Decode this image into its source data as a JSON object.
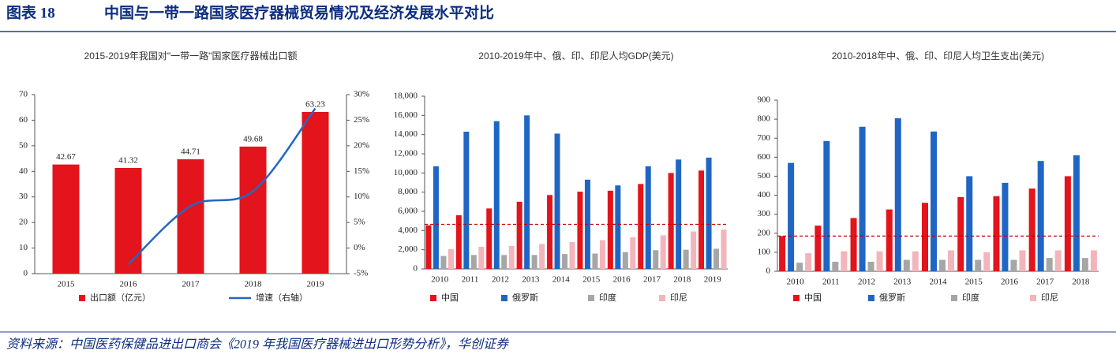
{
  "header": {
    "figure_label": "图表 18",
    "title": "中国与一带一路国家医疗器械贸易情况及经济发展水平对比"
  },
  "chart_data": [
    {
      "type": "combo",
      "title": "2015-2019年我国对\"一带一路\"国家医疗器械出口额",
      "categories": [
        "2015",
        "2016",
        "2017",
        "2018",
        "2019"
      ],
      "series": [
        {
          "name": "出口额（亿元）",
          "type": "bar",
          "color": "#e3141b",
          "values": [
            42.67,
            41.32,
            44.71,
            49.68,
            63.23
          ]
        },
        {
          "name": "增速（右轴）",
          "type": "line",
          "axis": "y2",
          "color": "#2467c2",
          "values": [
            null,
            -3.2,
            8.2,
            11.1,
            27.3
          ]
        }
      ],
      "data_labels": true,
      "ylim": [
        0,
        70
      ],
      "yticks": [
        0,
        10,
        20,
        30,
        40,
        50,
        60,
        70
      ],
      "y2lim": [
        -5,
        30
      ],
      "y2ticks": [
        {
          "value": -5,
          "label": "-5%"
        },
        {
          "value": 0,
          "label": "0%"
        },
        {
          "value": 5,
          "label": "5%"
        },
        {
          "value": 10,
          "label": "10%"
        },
        {
          "value": 15,
          "label": "15%"
        },
        {
          "value": 20,
          "label": "20%"
        },
        {
          "value": 25,
          "label": "25%"
        },
        {
          "value": 30,
          "label": "30%"
        }
      ]
    },
    {
      "type": "bar",
      "title": "2010-2019年中、俄、印、印尼人均GDP(美元)",
      "categories": [
        "2010",
        "2011",
        "2012",
        "2013",
        "2014",
        "2015",
        "2016",
        "2017",
        "2018",
        "2019"
      ],
      "series": [
        {
          "name": "中国",
          "color": "#e3141b",
          "values": [
            4550,
            5600,
            6300,
            7000,
            7700,
            8050,
            8150,
            8850,
            10000,
            10250
          ]
        },
        {
          "name": "俄罗斯",
          "color": "#1f66c4",
          "values": [
            10700,
            14300,
            15400,
            16000,
            14100,
            9300,
            8700,
            10700,
            11400,
            11600
          ]
        },
        {
          "name": "印度",
          "color": "#a6a6a6",
          "values": [
            1350,
            1450,
            1450,
            1450,
            1550,
            1600,
            1750,
            1950,
            2000,
            2100
          ]
        },
        {
          "name": "印尼",
          "color": "#f2b5bb",
          "values": [
            2050,
            2300,
            2400,
            2600,
            2800,
            3000,
            3300,
            3500,
            3900,
            4100
          ]
        }
      ],
      "hline": 4650,
      "hline_color": "#c00000",
      "ylim": [
        0,
        18000
      ],
      "yticks": [
        0,
        {
          "value": 2000,
          "label": "2,000"
        },
        {
          "value": 4000,
          "label": "4,000"
        },
        {
          "value": 6000,
          "label": "6,000"
        },
        {
          "value": 8000,
          "label": "8,000"
        },
        {
          "value": 10000,
          "label": "10,000"
        },
        {
          "value": 12000,
          "label": "12,000"
        },
        {
          "value": 14000,
          "label": "14,000"
        },
        {
          "value": 16000,
          "label": "16,000"
        },
        {
          "value": 18000,
          "label": "18,000"
        }
      ]
    },
    {
      "type": "bar",
      "title": "2010-2018年中、俄、印、印尼人均卫生支出(美元)",
      "categories": [
        "2010",
        "2011",
        "2012",
        "2013",
        "2014",
        "2015",
        "2016",
        "2017",
        "2018"
      ],
      "series": [
        {
          "name": "中国",
          "color": "#e3141b",
          "values": [
            185,
            240,
            280,
            325,
            360,
            390,
            395,
            435,
            500
          ]
        },
        {
          "name": "俄罗斯",
          "color": "#1f66c4",
          "values": [
            570,
            685,
            760,
            805,
            735,
            500,
            465,
            580,
            610
          ]
        },
        {
          "name": "印度",
          "color": "#a6a6a6",
          "values": [
            45,
            50,
            50,
            60,
            60,
            60,
            60,
            70,
            70
          ]
        },
        {
          "name": "印尼",
          "color": "#f2b5bb",
          "values": [
            95,
            105,
            105,
            105,
            110,
            100,
            110,
            110,
            110
          ]
        }
      ],
      "hline": 185,
      "hline_color": "#c00000",
      "ylim": [
        0,
        900
      ],
      "yticks": [
        0,
        100,
        200,
        300,
        400,
        500,
        600,
        700,
        800,
        900
      ]
    }
  ],
  "source": "资料来源：中国医药保健品进出口商会《2019 年我国医疗器械进出口形势分析》，华创证券"
}
